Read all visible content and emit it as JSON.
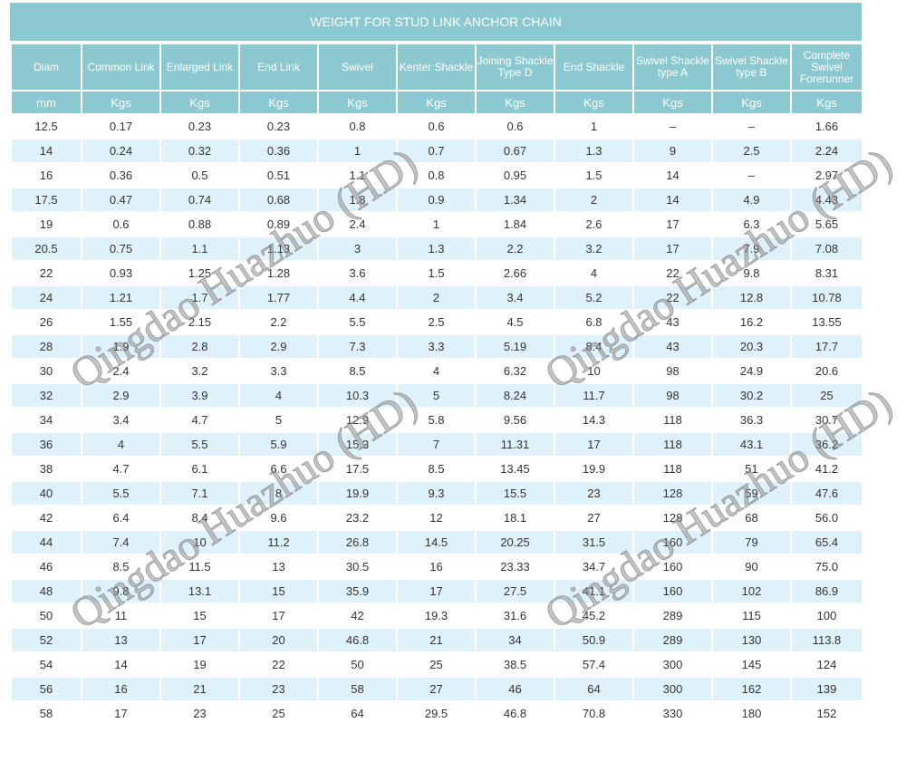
{
  "title": "WEIGHT FOR STUD LINK ANCHOR CHAIN",
  "columns": [
    [
      "Diam"
    ],
    [
      "Common Link"
    ],
    [
      "Enlarged Link"
    ],
    [
      "End Link"
    ],
    [
      "Swivel"
    ],
    [
      "Kenter Shackle"
    ],
    [
      "Joining Shackle",
      "Type D"
    ],
    [
      "End Shackle"
    ],
    [
      "Swivel Shackle",
      "type A"
    ],
    [
      "Swivel Shackle",
      "type B"
    ],
    [
      "Complete",
      "Swivel Forerunner"
    ]
  ],
  "units": [
    "mm",
    "Kgs",
    "Kgs",
    "Kgs",
    "Kgs",
    "Kgs",
    "Kgs",
    "Kgs",
    "Kgs",
    "Kgs",
    "Kgs"
  ],
  "rows": [
    [
      "12.5",
      "0.17",
      "0.23",
      "0.23",
      "0.8",
      "0.6",
      "0.6",
      "1",
      "–",
      "–",
      "1.66"
    ],
    [
      "14",
      "0.24",
      "0.32",
      "0.36",
      "1",
      "0.7",
      "0.67",
      "1.3",
      "9",
      "2.5",
      "2.24"
    ],
    [
      "16",
      "0.36",
      "0.5",
      "0.51",
      "1.1",
      "0.8",
      "0.95",
      "1.5",
      "14",
      "–",
      "2.97"
    ],
    [
      "17.5",
      "0.47",
      "0.74",
      "0.68",
      "1.8",
      "0.9",
      "1.34",
      "2",
      "14",
      "4.9",
      "4.43"
    ],
    [
      "19",
      "0.6",
      "0.88",
      "0.89",
      "2.4",
      "1",
      "1.84",
      "2.6",
      "17",
      "6.3",
      "5.65"
    ],
    [
      "20.5",
      "0.75",
      "1.1",
      "1.13",
      "3",
      "1.3",
      "2.2",
      "3.2",
      "17",
      "7.9",
      "7.08"
    ],
    [
      "22",
      "0.93",
      "1.25",
      "1.28",
      "3.6",
      "1.5",
      "2.66",
      "4",
      "22",
      "9.8",
      "8.31"
    ],
    [
      "24",
      "1.21",
      "1.7",
      "1.77",
      "4.4",
      "2",
      "3.4",
      "5.2",
      "22",
      "12.8",
      "10.78"
    ],
    [
      "26",
      "1.55",
      "2.15",
      "2.2",
      "5.5",
      "2.5",
      "4.5",
      "6.8",
      "43",
      "16.2",
      "13.55"
    ],
    [
      "28",
      "1.9",
      "2.8",
      "2.9",
      "7.3",
      "3.3",
      "5.19",
      "8.4",
      "43",
      "20.3",
      "17.7"
    ],
    [
      "30",
      "2.4",
      "3.2",
      "3.3",
      "8.5",
      "4",
      "6.32",
      "10",
      "98",
      "24.9",
      "20.6"
    ],
    [
      "32",
      "2.9",
      "3.9",
      "4",
      "10.3",
      "5",
      "8.24",
      "11.7",
      "98",
      "30.2",
      "25"
    ],
    [
      "34",
      "3.4",
      "4.7",
      "5",
      "12.9",
      "5.8",
      "9.56",
      "14.3",
      "118",
      "36.3",
      "30.7"
    ],
    [
      "36",
      "4",
      "5.5",
      "5.9",
      "15.3",
      "7",
      "11.31",
      "17",
      "118",
      "43.1",
      "36.2"
    ],
    [
      "38",
      "4.7",
      "6.1",
      "6.6",
      "17.5",
      "8.5",
      "13.45",
      "19.9",
      "118",
      "51",
      "41.2"
    ],
    [
      "40",
      "5.5",
      "7.1",
      "8",
      "19.9",
      "9.3",
      "15.5",
      "23",
      "128",
      "59",
      "47.6"
    ],
    [
      "42",
      "6.4",
      "8.4",
      "9.6",
      "23.2",
      "12",
      "18.1",
      "27",
      "128",
      "68",
      "56.0"
    ],
    [
      "44",
      "7.4",
      "10",
      "11.2",
      "26.8",
      "14.5",
      "20.25",
      "31.5",
      "160",
      "79",
      "65.4"
    ],
    [
      "46",
      "8.5",
      "11.5",
      "13",
      "30.5",
      "16",
      "23.33",
      "34.7",
      "160",
      "90",
      "75.0"
    ],
    [
      "48",
      "9.8",
      "13.1",
      "15",
      "35.9",
      "17",
      "27.5",
      "41.1",
      "160",
      "102",
      "86.9"
    ],
    [
      "50",
      "11",
      "15",
      "17",
      "42",
      "19.3",
      "31.6",
      "45.2",
      "289",
      "115",
      "100"
    ],
    [
      "52",
      "13",
      "17",
      "20",
      "46.8",
      "21",
      "34",
      "50.9",
      "289",
      "130",
      "113.8"
    ],
    [
      "54",
      "14",
      "19",
      "22",
      "50",
      "25",
      "38.5",
      "57.4",
      "300",
      "145",
      "124"
    ],
    [
      "56",
      "16",
      "21",
      "23",
      "58",
      "27",
      "46",
      "64",
      "300",
      "162",
      "139"
    ],
    [
      "58",
      "17",
      "23",
      "25",
      "64",
      "29.5",
      "46.8",
      "70.8",
      "330",
      "180",
      "152"
    ]
  ],
  "watermark": "Qingdao Huazhuo (HD)",
  "colors": {
    "header": "#8cc8cf",
    "stripe": "#dff1fb",
    "text": "#333333"
  }
}
